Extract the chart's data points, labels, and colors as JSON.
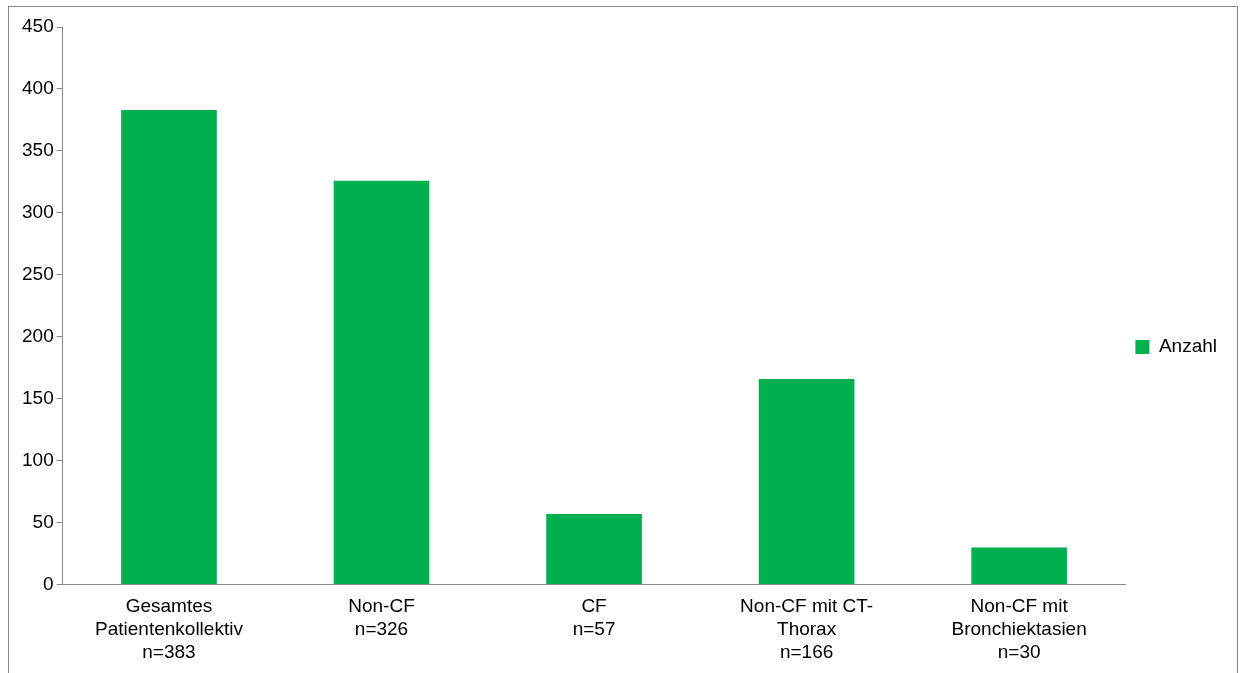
{
  "chart_data": {
    "type": "bar",
    "categories": [
      "Gesamtes\nPatientenkollektiv\nn=383",
      "Non-CF\nn=326",
      "CF\nn=57",
      "Non-CF mit CT-\nThorax\nn=166",
      "Non-CF mit\nBronchiektasien\nn=30"
    ],
    "series": [
      {
        "name": "Anzahl",
        "color": "#00b050",
        "values": [
          383,
          326,
          57,
          166,
          30
        ]
      }
    ],
    "ylim": [
      0,
      450
    ],
    "yticks": [
      0,
      50,
      100,
      150,
      200,
      250,
      300,
      350,
      400,
      450
    ],
    "grid": false,
    "legend": "right"
  }
}
